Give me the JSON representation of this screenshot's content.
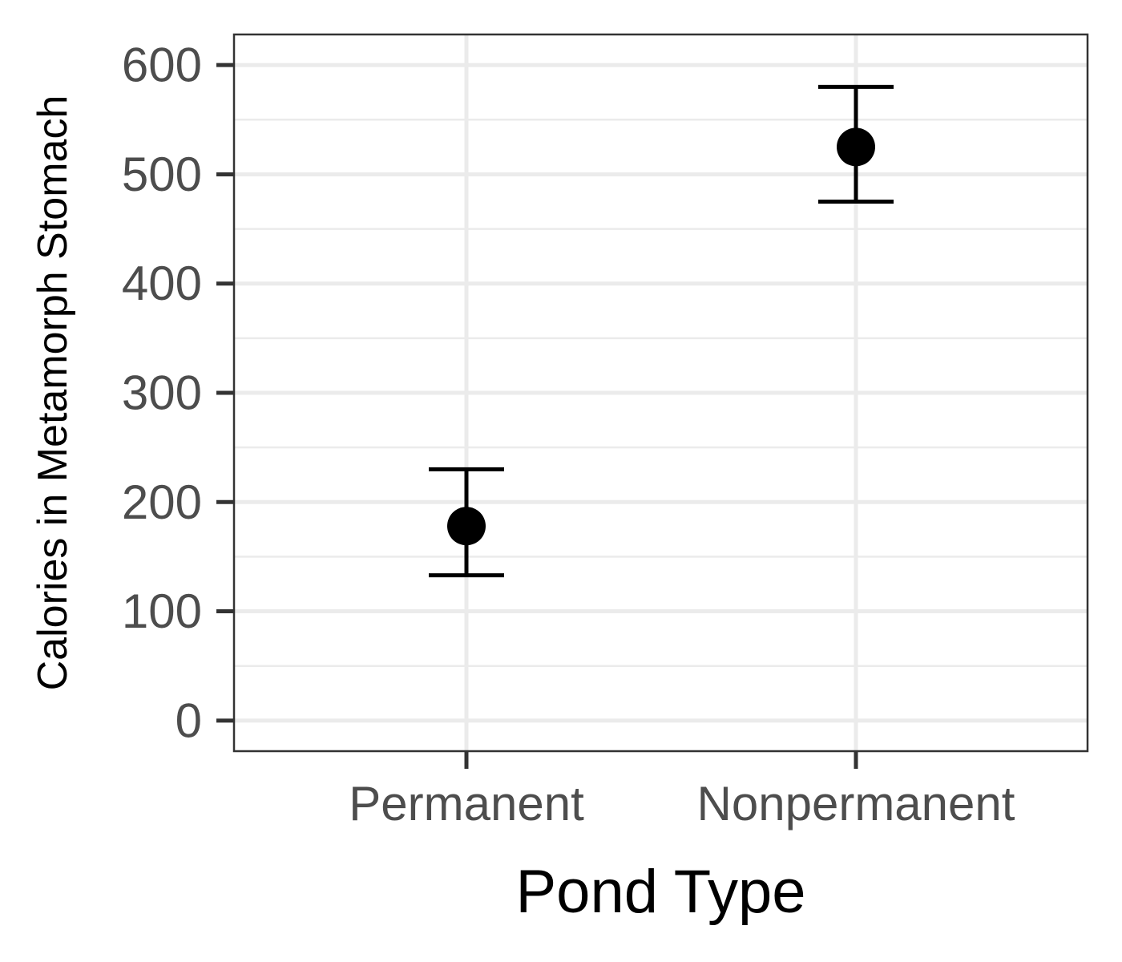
{
  "chart_data": {
    "type": "scatter",
    "subtype": "point-with-error-bars",
    "title": "",
    "xlabel": "Pond Type",
    "ylabel": "Calories in Metamorph Stomach",
    "categories": [
      "Permanent",
      "Nonpermanent"
    ],
    "values": [
      178,
      525
    ],
    "error_lower": [
      133,
      475
    ],
    "error_upper": [
      230,
      580
    ],
    "ylim": [
      -28,
      628
    ],
    "yticks": [
      0,
      100,
      200,
      300,
      400,
      500,
      600
    ],
    "ytick_labels": [
      "0",
      "100",
      "200",
      "300",
      "400",
      "500",
      "600"
    ],
    "grid": true,
    "legend": "none",
    "colors": {
      "points": "#000000",
      "error_bars": "#000000",
      "grid": "#ebebeb",
      "panel_border": "#333333",
      "tick_labels": "#4d4d4d"
    }
  }
}
